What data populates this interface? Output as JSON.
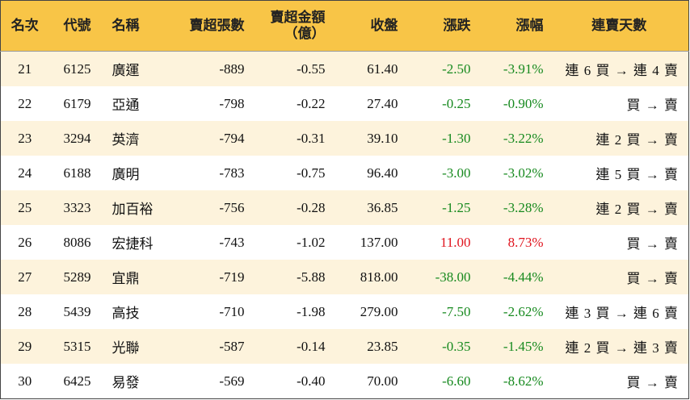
{
  "table": {
    "header": [
      "名次",
      "代號",
      "名稱",
      "賣超張數",
      "賣超金額\n（億）",
      "收盤",
      "漲跌",
      "漲幅",
      "連賣天數"
    ],
    "rows": [
      [
        "21",
        "6125",
        "廣運",
        "-889",
        "-0.55",
        "61.40",
        "-2.50",
        "-3.91%",
        "連 6 買 → 連 4 賣"
      ],
      [
        "22",
        "6179",
        "亞通",
        "-798",
        "-0.22",
        "27.40",
        "-0.25",
        "-0.90%",
        "買 → 賣"
      ],
      [
        "23",
        "3294",
        "英濟",
        "-794",
        "-0.31",
        "39.10",
        "-1.30",
        "-3.22%",
        "連 2 買 → 賣"
      ],
      [
        "24",
        "6188",
        "廣明",
        "-783",
        "-0.75",
        "96.40",
        "-3.00",
        "-3.02%",
        "連 5 買 → 賣"
      ],
      [
        "25",
        "3323",
        "加百裕",
        "-756",
        "-0.28",
        "36.85",
        "-1.25",
        "-3.28%",
        "連 2 買 → 賣"
      ],
      [
        "26",
        "8086",
        "宏捷科",
        "-743",
        "-1.02",
        "137.00",
        "11.00",
        "8.73%",
        "買 → 賣"
      ],
      [
        "27",
        "5289",
        "宜鼎",
        "-719",
        "-5.88",
        "818.00",
        "-38.00",
        "-4.44%",
        "買 → 賣"
      ],
      [
        "28",
        "5439",
        "高技",
        "-710",
        "-1.98",
        "279.00",
        "-7.50",
        "-2.62%",
        "連 3 買 → 連 6 賣"
      ],
      [
        "29",
        "5315",
        "光聯",
        "-587",
        "-0.14",
        "23.85",
        "-0.35",
        "-1.45%",
        "連 2 買 → 連 3 賣"
      ],
      [
        "30",
        "6425",
        "易發",
        "-569",
        "-0.40",
        "70.00",
        "-6.60",
        "-8.62%",
        "買 → 賣"
      ]
    ]
  }
}
